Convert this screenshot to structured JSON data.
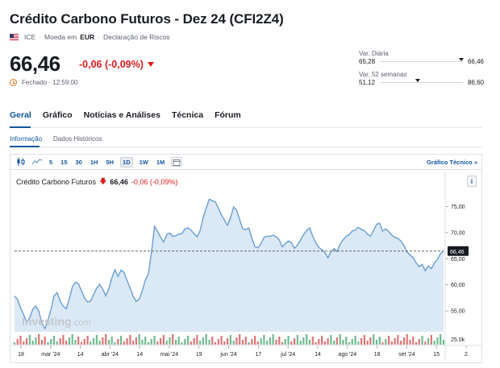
{
  "header": {
    "title": "Crédito Carbono Futuros - Dez 24 (CFI2Z4)",
    "exchange": "ICE",
    "currency_label": "Moeda em",
    "currency": "EUR",
    "risk_label": "Declaração de Riscos"
  },
  "quote": {
    "price": "66,46",
    "change": "-0,06 (-0,09%)",
    "status": "Fechado · 12:59:00"
  },
  "ranges": {
    "daily": {
      "label": "Var. Diária",
      "low": "65,28",
      "high": "66,46",
      "position": 0.95
    },
    "weeks52": {
      "label": "Var. 52 semanas",
      "low": "51,12",
      "high": "86,60",
      "position": 0.43
    }
  },
  "tabs": [
    "Geral",
    "Gráfico",
    "Notícias e Análises",
    "Técnica",
    "Fórum"
  ],
  "subtabs": [
    "Informação",
    "Dados Históricos"
  ],
  "toolbar": {
    "intervals": [
      "5",
      "15",
      "30",
      "1H",
      "5H",
      "1D",
      "1W",
      "1M"
    ],
    "selected": "1D",
    "tech_chart_link": "Gráfico Técnico »"
  },
  "chart_legend": {
    "name": "Crédito Carbono Futuros",
    "price": "66,46",
    "change": "-0,06 (-0,09%)",
    "info": "i"
  },
  "watermark": {
    "brand": "Investing",
    "suffix": ".com"
  },
  "colors": {
    "accent": "#1256a0",
    "negative": "#e21b1b",
    "line": "#6a9fd4",
    "area": "#dbe8f5"
  },
  "chart_data": {
    "type": "area",
    "y_ticks": [
      "75,00",
      "70,00",
      "65,00",
      "60,00",
      "55,00"
    ],
    "volume_tick": "25.0k",
    "x_ticks": [
      "18",
      "mar '24",
      "14",
      "abr '24",
      "14",
      "mai '24",
      "19",
      "jun '24",
      "17",
      "jul '24",
      "14",
      "ago '24",
      "18",
      "set '24",
      "15",
      "2"
    ],
    "last_value_label": "66,46",
    "ylim": [
      51,
      78
    ],
    "values": [
      57.8,
      57.2,
      55.6,
      54.3,
      52.8,
      53.7,
      55.3,
      55.9,
      54.9,
      52.6,
      51.6,
      53.2,
      55.3,
      57.9,
      58.5,
      56.9,
      55.9,
      55.4,
      57.3,
      59.6,
      60.5,
      60.2,
      58.9,
      57.5,
      56.7,
      56.9,
      58.1,
      59.4,
      60.1,
      59.2,
      57.9,
      59.3,
      61.3,
      62.9,
      61.6,
      62.8,
      62.4,
      60.8,
      59.4,
      57.8,
      56.8,
      57.3,
      58.9,
      60.9,
      62.1,
      66.2,
      71.2,
      70.3,
      69.1,
      68.2,
      69.6,
      69.9,
      69.3,
      69.4,
      69.7,
      69.8,
      70.7,
      70.9,
      70.5,
      69.8,
      69.2,
      70.4,
      72.9,
      74.7,
      76.4,
      76.1,
      75.9,
      74.7,
      73.4,
      72.4,
      71.4,
      72.9,
      74.9,
      74.3,
      72.5,
      70.7,
      70.6,
      70.9,
      68.9,
      67.3,
      67.1,
      67.9,
      69.1,
      69.3,
      69.3,
      69.5,
      69.2,
      68.6,
      67.3,
      67.9,
      68.4,
      68.1,
      67.0,
      67.6,
      68.6,
      69.6,
      70.4,
      70.9,
      69.3,
      68.1,
      67.2,
      66.7,
      66.2,
      65.2,
      66.3,
      66.9,
      66.4,
      67.8,
      68.6,
      69.3,
      69.6,
      70.3,
      70.5,
      71.0,
      70.6,
      70.4,
      69.7,
      69.3,
      70.4,
      71.6,
      71.8,
      70.3,
      70.7,
      70.2,
      69.5,
      69.1,
      68.9,
      68.4,
      67.5,
      66.3,
      65.7,
      65.2,
      64.2,
      63.5,
      63.9,
      62.7,
      63.6,
      63.1,
      64.2,
      64.9,
      66.0,
      66.46
    ]
  }
}
